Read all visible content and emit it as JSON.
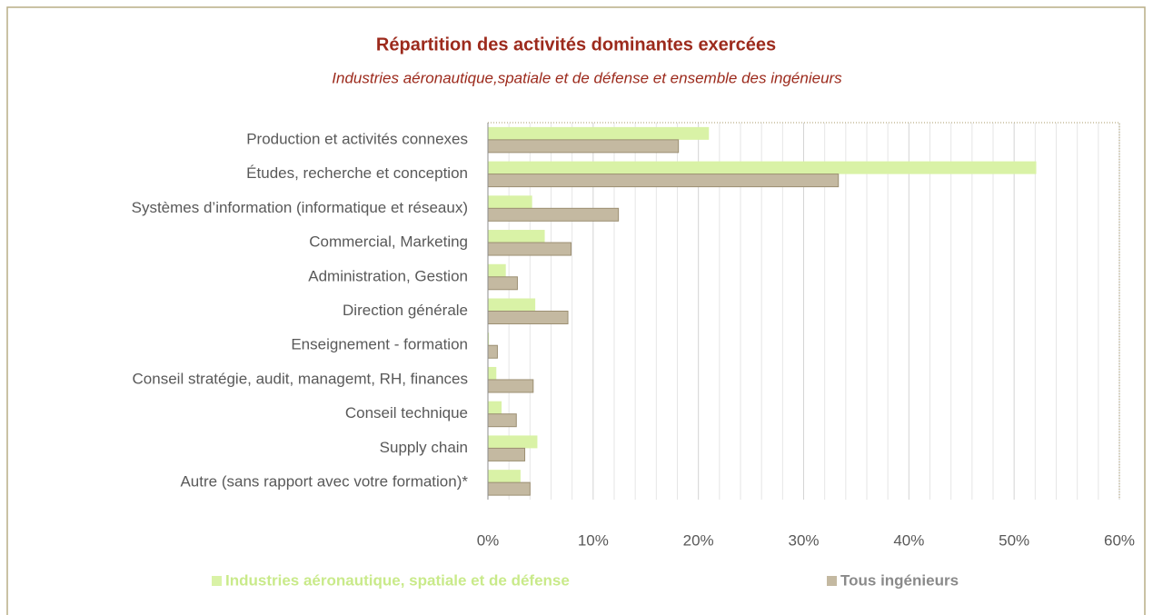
{
  "chart_data": {
    "type": "hbar",
    "title": "Répartition des activités dominantes exercées",
    "subtitle": "Industries aéronautique,spatiale et de défense et ensemble des ingénieurs",
    "categories": [
      "Production et activités connexes",
      "Études, recherche et conception",
      "Systèmes d’information (informatique et réseaux)",
      "Commercial, Marketing",
      "Administration, Gestion",
      "Direction générale",
      "Enseignement - formation",
      "Conseil stratégie, audit, managemt, RH, finances",
      "Conseil technique",
      "Supply chain",
      "Autre (sans rapport avec votre formation)*"
    ],
    "series": [
      {
        "name": "Industries aéronautique, spatiale et de défense",
        "color": "#d9f2a6",
        "values": [
          21.0,
          52.1,
          4.2,
          5.4,
          1.7,
          4.5,
          0.1,
          0.8,
          1.3,
          4.7,
          3.1
        ]
      },
      {
        "name": "Tous ingénieurs",
        "color": "#c4b9a1",
        "values": [
          18.1,
          33.3,
          12.4,
          7.9,
          2.8,
          7.6,
          0.9,
          4.3,
          2.7,
          3.5,
          4.0
        ]
      }
    ],
    "xlim": [
      0,
      60
    ],
    "xticks": [
      {
        "value": 0,
        "label": "0%"
      },
      {
        "value": 10,
        "label": "10%"
      },
      {
        "value": 20,
        "label": "20%"
      },
      {
        "value": 30,
        "label": "30%"
      },
      {
        "value": 40,
        "label": "40%"
      },
      {
        "value": 50,
        "label": "50%"
      },
      {
        "value": 60,
        "label": "60%"
      }
    ],
    "xminorticks": [
      2,
      4,
      6,
      8,
      12,
      14,
      16,
      18,
      22,
      24,
      26,
      28,
      32,
      34,
      36,
      38,
      42,
      44,
      46,
      48,
      52,
      54,
      56,
      58
    ],
    "grid": true,
    "legend": "bottom"
  }
}
